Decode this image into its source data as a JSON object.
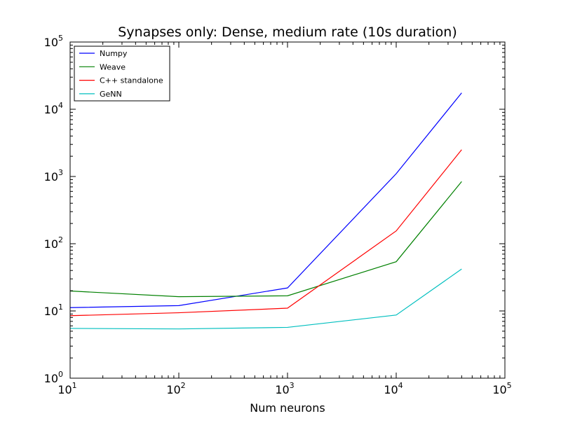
{
  "chart_data": {
    "type": "line",
    "title": "Synapses only: Dense, medium rate (10s duration)",
    "xlabel": "Num neurons",
    "ylabel": "",
    "xscale": "log",
    "yscale": "log",
    "xlim": [
      10,
      100000
    ],
    "ylim": [
      1,
      100000
    ],
    "x_ticks": [
      {
        "value": 10,
        "base": "10",
        "exp": "1"
      },
      {
        "value": 100,
        "base": "10",
        "exp": "2"
      },
      {
        "value": 1000,
        "base": "10",
        "exp": "3"
      },
      {
        "value": 10000,
        "base": "10",
        "exp": "4"
      },
      {
        "value": 100000,
        "base": "10",
        "exp": "5"
      }
    ],
    "y_ticks": [
      {
        "value": 1,
        "base": "10",
        "exp": "0"
      },
      {
        "value": 10,
        "base": "10",
        "exp": "1"
      },
      {
        "value": 100,
        "base": "10",
        "exp": "2"
      },
      {
        "value": 1000,
        "base": "10",
        "exp": "3"
      },
      {
        "value": 10000,
        "base": "10",
        "exp": "4"
      },
      {
        "value": 100000,
        "base": "10",
        "exp": "5"
      }
    ],
    "grid": false,
    "legend_position": "top-left",
    "x": [
      10,
      100,
      1000,
      10000,
      40000
    ],
    "series": [
      {
        "name": "Numpy",
        "color": "#0000ff",
        "values": [
          11.2,
          12.0,
          22.0,
          1100,
          17500
        ]
      },
      {
        "name": "Weave",
        "color": "#008000",
        "values": [
          19.8,
          16.3,
          16.8,
          54,
          840
        ]
      },
      {
        "name": "C++ standalone",
        "color": "#ff0000",
        "values": [
          8.5,
          9.4,
          11.0,
          155,
          2500
        ]
      },
      {
        "name": "GeNN",
        "color": "#00bfbf",
        "values": [
          5.5,
          5.4,
          5.7,
          8.7,
          42
        ]
      }
    ]
  }
}
